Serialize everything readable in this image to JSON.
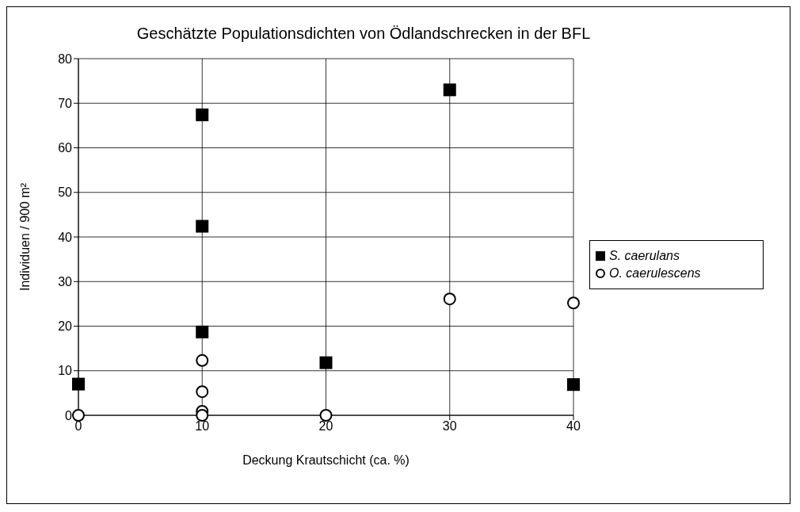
{
  "chart_data": {
    "type": "scatter",
    "title": "Geschätzte Populationsdichten von Ödlandschrecken in der BFL",
    "xlabel": "Deckung Krautschicht (ca. %)",
    "ylabel": "Individuen / 900 m²",
    "xlim": [
      0,
      40
    ],
    "xticks": [
      0,
      10,
      20,
      30,
      40
    ],
    "ylim": [
      0,
      80
    ],
    "yticks": [
      0,
      10,
      20,
      30,
      40,
      50,
      60,
      70,
      80
    ],
    "grid": true,
    "legend": "right",
    "series": [
      {
        "name": "S. caerulans",
        "color": "#000000",
        "marker": "square",
        "x": [
          0,
          10,
          10,
          10,
          20,
          30,
          40
        ],
        "values": [
          7,
          67.4,
          42.4,
          18.7,
          11.8,
          73,
          6.9
        ]
      },
      {
        "name": "O. caerulescens",
        "color": "#000000",
        "marker": "circle",
        "x": [
          0,
          10,
          10,
          10,
          10,
          20,
          30,
          40
        ],
        "values": [
          0,
          12.3,
          5.3,
          0.9,
          0,
          0,
          26.1,
          25.2
        ]
      }
    ]
  }
}
